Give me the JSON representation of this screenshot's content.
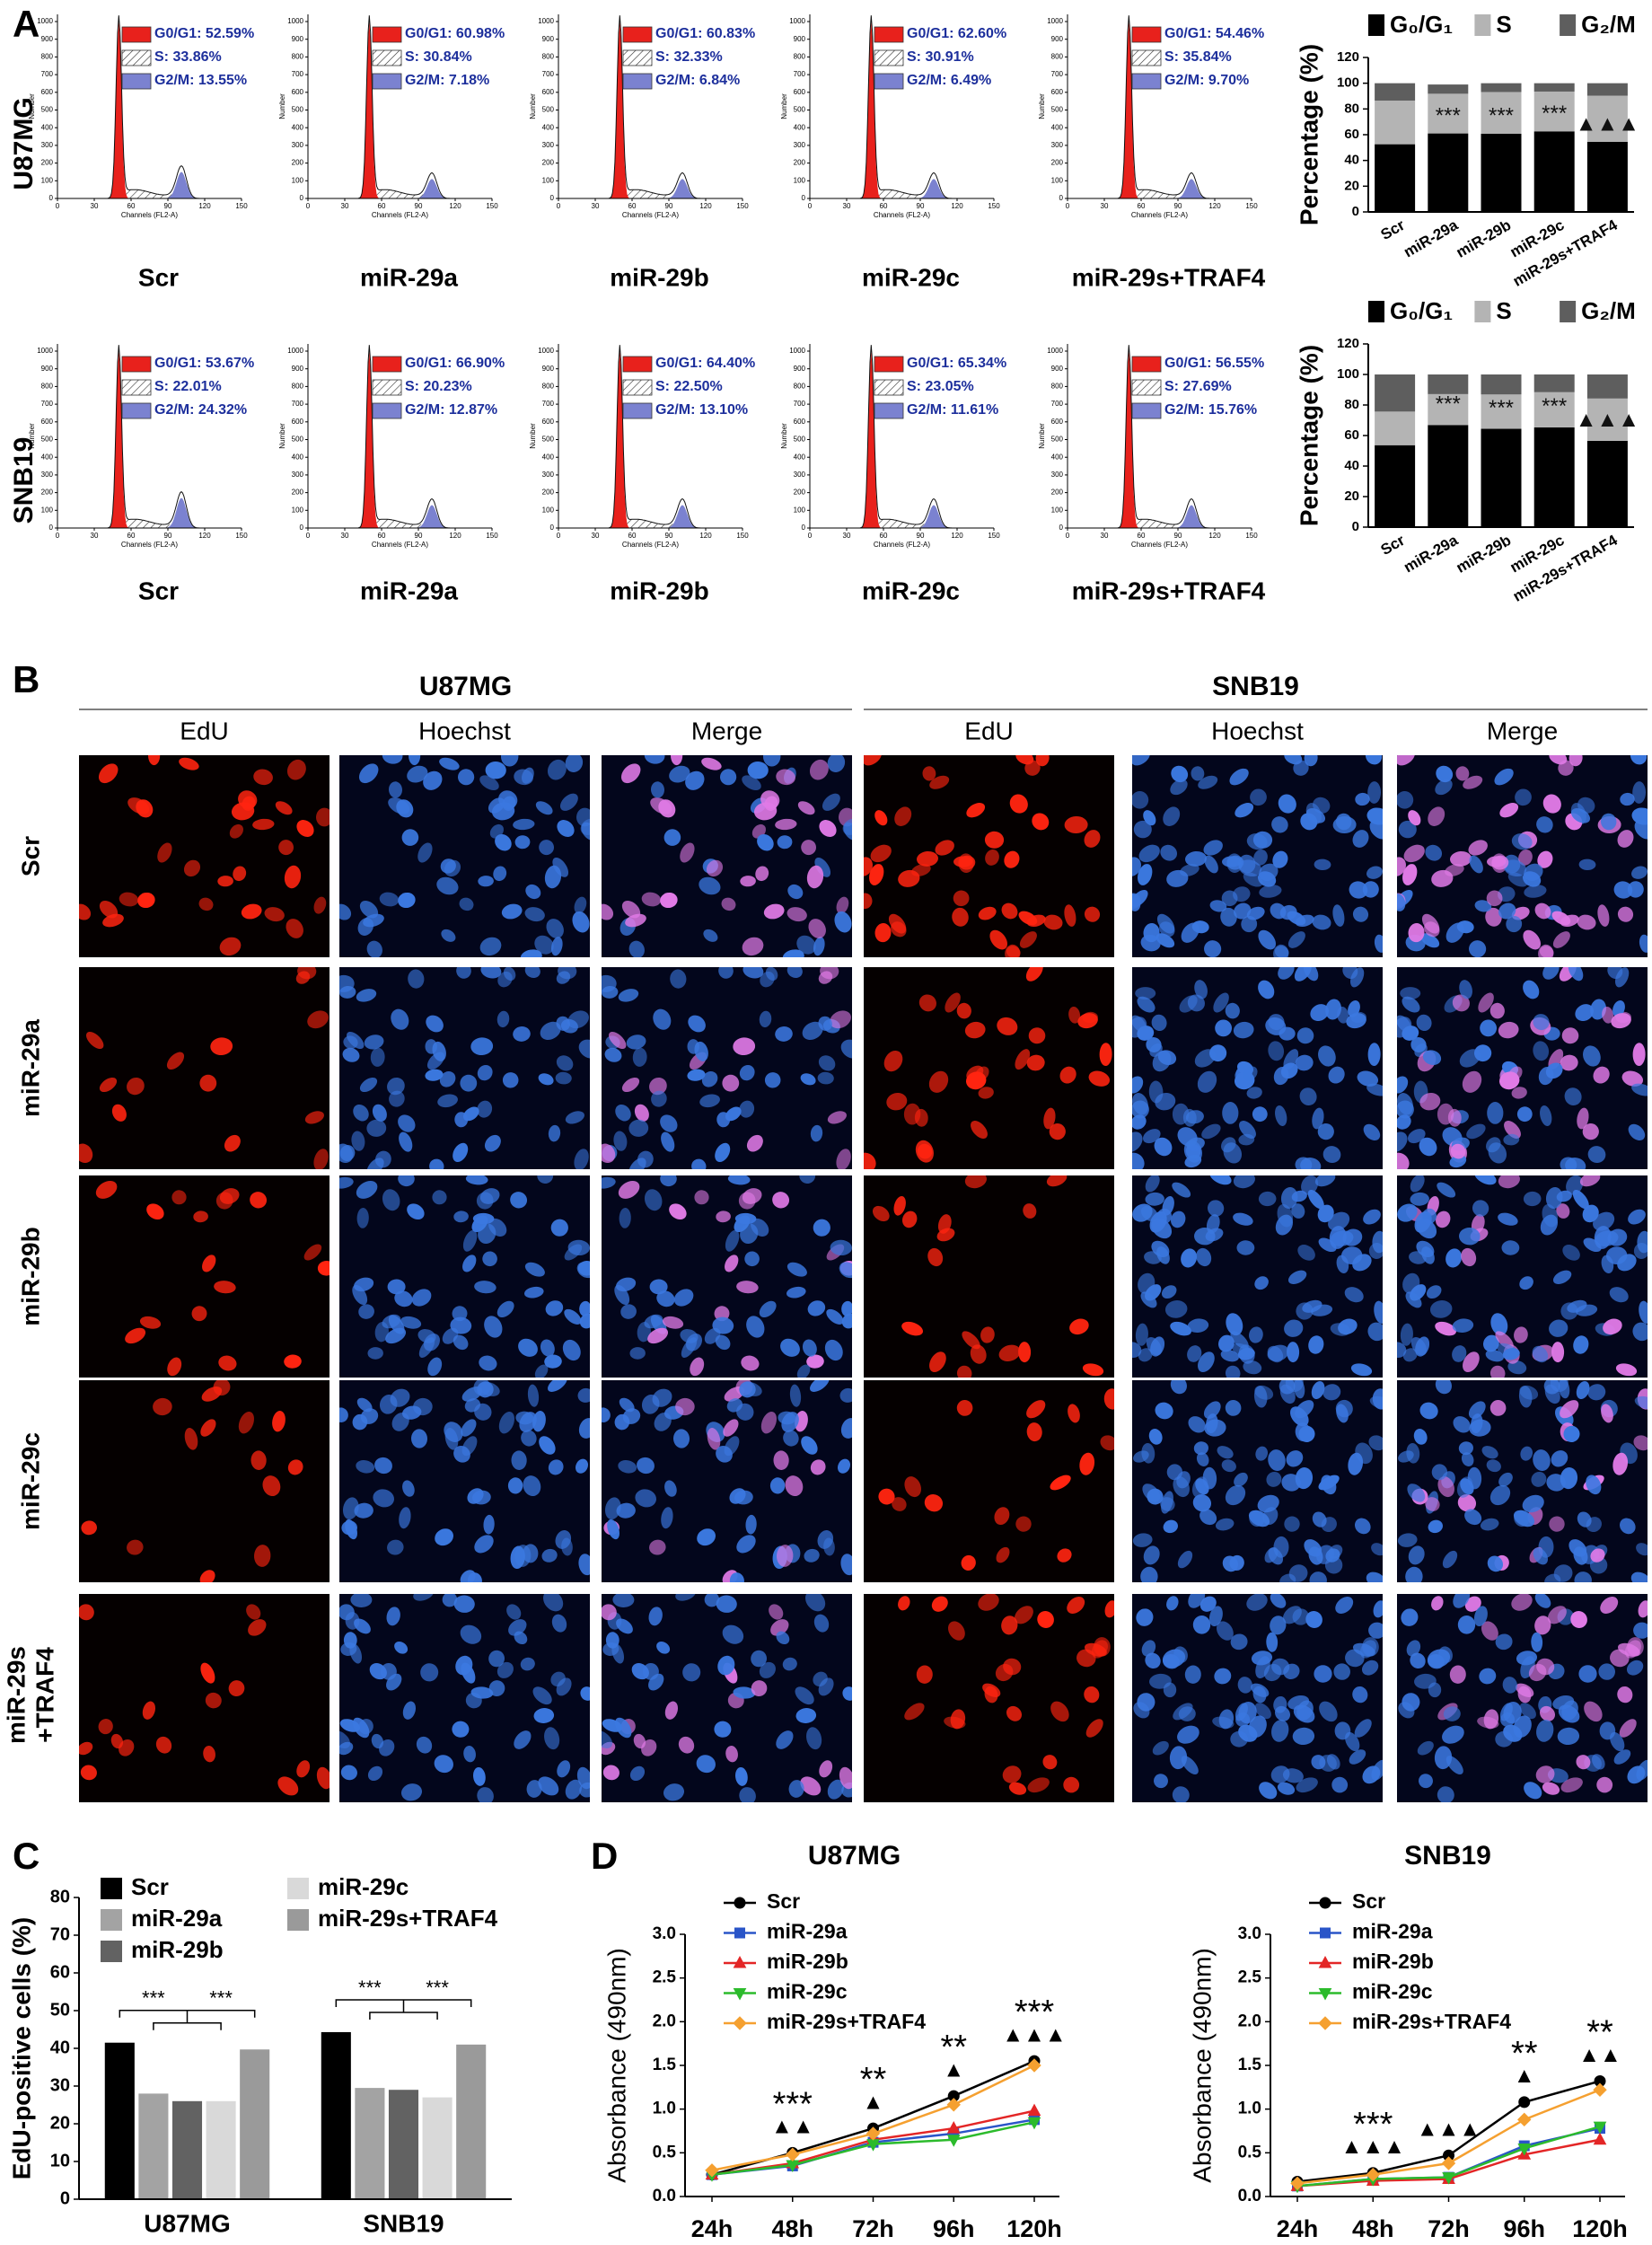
{
  "panel_labels": [
    "A",
    "B",
    "C",
    "D"
  ],
  "flow": {
    "ylabel": "Number",
    "xlabel": "Channels (FL2-A)",
    "yticks": [
      0,
      100,
      200,
      300,
      400,
      500,
      600,
      700,
      800,
      900,
      1000
    ],
    "xticks": [
      0,
      30,
      60,
      90,
      120,
      150
    ],
    "rows": [
      {
        "label": "U87MG",
        "samples": [
          {
            "name": "Scr",
            "legend": [
              "G0/G1: 52.59%",
              "S: 33.86%",
              "G2/M: 13.55%"
            ]
          },
          {
            "name": "miR-29a",
            "legend": [
              "G0/G1: 60.98%",
              "S: 30.84%",
              "G2/M: 7.18%"
            ]
          },
          {
            "name": "miR-29b",
            "legend": [
              "G0/G1: 60.83%",
              "S: 32.33%",
              "G2/M: 6.84%"
            ]
          },
          {
            "name": "miR-29c",
            "legend": [
              "G0/G1: 62.60%",
              "S: 30.91%",
              "G2/M: 6.49%"
            ]
          },
          {
            "name": "miR-29s+TRAF4",
            "legend": [
              "G0/G1: 54.46%",
              "S: 35.84%",
              "G2/M: 9.70%"
            ]
          }
        ]
      },
      {
        "label": "SNB19",
        "samples": [
          {
            "name": "Scr",
            "legend": [
              "G0/G1: 53.67%",
              "S: 22.01%",
              "G2/M: 24.32%"
            ]
          },
          {
            "name": "miR-29a",
            "legend": [
              "G0/G1: 66.90%",
              "S: 20.23%",
              "G2/M: 12.87%"
            ]
          },
          {
            "name": "miR-29b",
            "legend": [
              "G0/G1: 64.40%",
              "S: 22.50%",
              "G2/M: 13.10%"
            ]
          },
          {
            "name": "miR-29c",
            "legend": [
              "G0/G1: 65.34%",
              "S: 23.05%",
              "G2/M: 11.61%"
            ]
          },
          {
            "name": "miR-29s+TRAF4",
            "legend": [
              "G0/G1: 56.55%",
              "S: 27.69%",
              "G2/M: 15.76%"
            ]
          }
        ]
      }
    ]
  },
  "microscopy": {
    "groups": [
      "U87MG",
      "SNB19"
    ],
    "channels": [
      "EdU",
      "Hoechst",
      "Merge"
    ],
    "rows": [
      [
        "Scr"
      ],
      [
        "miR-29a"
      ],
      [
        "miR-29b"
      ],
      [
        "miR-29c"
      ],
      [
        "miR-29s",
        "+TRAF4"
      ]
    ]
  },
  "chart_data": [
    {
      "type": "stacked_bar",
      "ylabel": "Percentage (%)",
      "categories": [
        "Scr",
        "miR-29a",
        "miR-29b",
        "miR-29c",
        "miR-29s+TRAF4"
      ],
      "series": [
        {
          "name": "G₀/G₁",
          "color": "#000000",
          "values": [
            52.59,
            60.98,
            60.83,
            62.6,
            54.46
          ]
        },
        {
          "name": "S",
          "color": "#b4b4b4",
          "values": [
            33.86,
            30.84,
            32.33,
            30.91,
            35.84
          ]
        },
        {
          "name": "G₂/M",
          "color": "#5e5e5e",
          "values": [
            13.55,
            7.18,
            6.84,
            6.49,
            9.7
          ]
        }
      ],
      "annotations": [
        null,
        "***",
        "***",
        "***",
        "▲▲▲"
      ],
      "ylim": [
        0,
        120
      ],
      "yticks": [
        0,
        20,
        40,
        60,
        80,
        100,
        120
      ]
    },
    {
      "type": "stacked_bar",
      "ylabel": "Percentage (%)",
      "categories": [
        "Scr",
        "miR-29a",
        "miR-29b",
        "miR-29c",
        "miR-29s+TRAF4"
      ],
      "series": [
        {
          "name": "G₀/G₁",
          "color": "#000000",
          "values": [
            53.67,
            66.9,
            64.4,
            65.34,
            56.55
          ]
        },
        {
          "name": "S",
          "color": "#b4b4b4",
          "values": [
            22.01,
            20.23,
            22.5,
            23.05,
            27.69
          ]
        },
        {
          "name": "G₂/M",
          "color": "#5e5e5e",
          "values": [
            24.32,
            12.87,
            13.1,
            11.61,
            15.76
          ]
        }
      ],
      "annotations": [
        null,
        "***",
        "***",
        "***",
        "▲▲▲"
      ],
      "ylim": [
        0,
        120
      ],
      "yticks": [
        0,
        20,
        40,
        60,
        80,
        100,
        120
      ]
    },
    {
      "type": "grouped_bar",
      "ylabel": "EdU-positive cells (%)",
      "categories": [
        "U87MG",
        "SNB19"
      ],
      "series": [
        {
          "name": "Scr",
          "color": "#000000",
          "values": [
            41.5,
            44.3
          ]
        },
        {
          "name": "miR-29a",
          "color": "#a3a3a3",
          "values": [
            28,
            29.5
          ]
        },
        {
          "name": "miR-29b",
          "color": "#626262",
          "values": [
            26,
            29
          ]
        },
        {
          "name": "miR-29c",
          "color": "#d9d9d9",
          "values": [
            26,
            27
          ]
        },
        {
          "name": "miR-29s+TRAF4",
          "color": "#9a9a9a",
          "values": [
            39.7,
            41
          ]
        }
      ],
      "annotations": [
        [
          "***",
          "***"
        ],
        [
          "***",
          "***"
        ]
      ],
      "ylim": [
        0,
        80
      ],
      "yticks": [
        0,
        10,
        20,
        30,
        40,
        50,
        60,
        70,
        80
      ]
    },
    {
      "type": "line",
      "title": "U87MG",
      "ylabel": "Absorbance (490nm)",
      "categories": [
        "24h",
        "48h",
        "72h",
        "96h",
        "120h"
      ],
      "series": [
        {
          "name": "Scr",
          "color": "#000000",
          "marker": "circle",
          "values": [
            0.25,
            0.5,
            0.78,
            1.15,
            1.55
          ]
        },
        {
          "name": "miR-29a",
          "color": "#2a55c8",
          "marker": "square",
          "values": [
            0.25,
            0.35,
            0.62,
            0.72,
            0.88
          ]
        },
        {
          "name": "miR-29b",
          "color": "#e32626",
          "marker": "triangle",
          "values": [
            0.25,
            0.38,
            0.65,
            0.78,
            0.98
          ]
        },
        {
          "name": "miR-29c",
          "color": "#2cbb2c",
          "marker": "triangle-down",
          "values": [
            0.25,
            0.36,
            0.6,
            0.65,
            0.85
          ]
        },
        {
          "name": "miR-29s+TRAF4",
          "color": "#f5a030",
          "marker": "diamond",
          "values": [
            0.3,
            0.48,
            0.72,
            1.05,
            1.5
          ]
        }
      ],
      "stars": [
        null,
        "***",
        "**",
        "**",
        "***"
      ],
      "triangles": [
        null,
        "▲▲",
        "▲",
        "▲",
        "▲▲▲"
      ],
      "ylim": [
        0,
        3
      ],
      "yticks": [
        {
          "value": 0,
          "label": "0.0"
        },
        0.5,
        {
          "value": 1,
          "label": "1.0"
        },
        1.5,
        {
          "value": 2,
          "label": "2.0"
        },
        2.5,
        {
          "value": 3,
          "label": "3.0"
        }
      ]
    },
    {
      "type": "line",
      "title": "SNB19",
      "ylabel": "Absorbance (490nm)",
      "categories": [
        "24h",
        "48h",
        "72h",
        "96h",
        "120h"
      ],
      "series": [
        {
          "name": "Scr",
          "color": "#000000",
          "marker": "circle",
          "values": [
            0.17,
            0.27,
            0.47,
            1.08,
            1.32
          ]
        },
        {
          "name": "miR-29a",
          "color": "#2a55c8",
          "marker": "square",
          "values": [
            0.12,
            0.2,
            0.22,
            0.58,
            0.78
          ]
        },
        {
          "name": "miR-29b",
          "color": "#e32626",
          "marker": "triangle",
          "values": [
            0.12,
            0.18,
            0.2,
            0.48,
            0.65
          ]
        },
        {
          "name": "miR-29c",
          "color": "#2cbb2c",
          "marker": "triangle-down",
          "values": [
            0.12,
            0.2,
            0.22,
            0.55,
            0.8
          ]
        },
        {
          "name": "miR-29s+TRAF4",
          "color": "#f5a030",
          "marker": "diamond",
          "values": [
            0.15,
            0.25,
            0.38,
            0.88,
            1.22
          ]
        }
      ],
      "stars": [
        null,
        "***",
        null,
        "**",
        "**"
      ],
      "triangles": [
        null,
        "▲▲▲",
        "▲▲▲",
        "▲",
        "▲▲"
      ],
      "ylim": [
        0,
        3
      ],
      "yticks": [
        {
          "value": 0,
          "label": "0.0"
        },
        0.5,
        {
          "value": 1,
          "label": "1.0"
        },
        1.5,
        {
          "value": 2,
          "label": "2.0"
        },
        2.5,
        {
          "value": 3,
          "label": "3.0"
        }
      ]
    }
  ]
}
